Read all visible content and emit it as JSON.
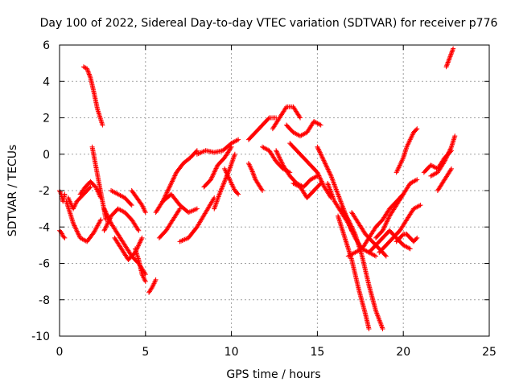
{
  "chart_data": {
    "type": "scatter",
    "title": "Day 100 of 2022, Sidereal Day-to-day VTEC variation (SDTVAR) for receiver p776",
    "xlabel": "GPS time / hours",
    "ylabel": "SDTVAR / TECUs",
    "xlim": [
      0,
      25
    ],
    "ylim": [
      -10,
      6
    ],
    "xticks": [
      0,
      5,
      10,
      15,
      20,
      25
    ],
    "xtick_labels": [
      "0",
      "5",
      "10",
      "15",
      "20",
      "25"
    ],
    "yticks": [
      -10,
      -8,
      -6,
      -4,
      -2,
      0,
      2,
      4,
      6
    ],
    "ytick_labels": [
      "-10",
      "-8",
      "-6",
      "-4",
      "-2",
      "0",
      "2",
      "4",
      "6"
    ],
    "grid": true,
    "legend": "none",
    "marker": "+",
    "colors": {
      "series": "#ff0000",
      "grid": "#a0a0a0",
      "axis": "#000000"
    },
    "series": [
      {
        "x": [
          0.0,
          0.1,
          0.2,
          0.3
        ],
        "y": [
          -2.0,
          -2.2,
          -2.6,
          -2.2
        ]
      },
      {
        "x": [
          0.0,
          0.1,
          0.2,
          0.3
        ],
        "y": [
          -4.2,
          -4.3,
          -4.5,
          -4.6
        ]
      },
      {
        "x": [
          0.5,
          0.8,
          1.0,
          1.4,
          1.8
        ],
        "y": [
          -2.4,
          -3.0,
          -2.6,
          -2.2,
          -1.8
        ]
      },
      {
        "x": [
          0.4,
          0.8,
          1.2,
          1.6,
          2.0,
          2.4
        ],
        "y": [
          -2.6,
          -3.8,
          -4.6,
          -4.8,
          -4.3,
          -3.6
        ]
      },
      {
        "x": [
          1.2,
          1.5,
          1.8,
          2.1,
          2.4
        ],
        "y": [
          -2.2,
          -1.8,
          -1.5,
          -1.8,
          -2.4
        ]
      },
      {
        "x": [
          1.4,
          1.6,
          1.8,
          2.0,
          2.2,
          2.5
        ],
        "y": [
          4.8,
          4.7,
          4.2,
          3.4,
          2.5,
          1.6
        ]
      },
      {
        "x": [
          1.9,
          2.1,
          2.3,
          2.5,
          2.7
        ],
        "y": [
          0.4,
          -0.6,
          -1.6,
          -2.6,
          -3.6
        ]
      },
      {
        "x": [
          2.6,
          3.0,
          3.4,
          3.8,
          4.2,
          4.6
        ],
        "y": [
          -4.2,
          -3.4,
          -3.0,
          -3.2,
          -3.6,
          -4.2
        ]
      },
      {
        "x": [
          2.6,
          3.0,
          3.4,
          3.8,
          4.2,
          4.6,
          5.0
        ],
        "y": [
          -3.0,
          -3.8,
          -4.4,
          -5.0,
          -5.6,
          -6.0,
          -6.6
        ]
      },
      {
        "x": [
          3.2,
          3.6,
          4.0,
          4.4,
          4.8
        ],
        "y": [
          -4.6,
          -5.2,
          -5.8,
          -5.4,
          -4.6
        ]
      },
      {
        "x": [
          3.0,
          3.4,
          3.8,
          4.2
        ],
        "y": [
          -2.0,
          -2.2,
          -2.4,
          -2.8
        ]
      },
      {
        "x": [
          4.2,
          4.5,
          4.8,
          5.0
        ],
        "y": [
          -2.0,
          -2.4,
          -2.8,
          -3.2
        ]
      },
      {
        "x": [
          4.4,
          4.6,
          4.8,
          5.0
        ],
        "y": [
          -5.2,
          -5.8,
          -6.6,
          -7.0
        ]
      },
      {
        "x": [
          5.2,
          5.4,
          5.6
        ],
        "y": [
          -7.6,
          -7.3,
          -6.9
        ]
      },
      {
        "x": [
          5.8,
          6.2,
          6.6,
          7.0
        ],
        "y": [
          -4.6,
          -4.2,
          -3.6,
          -3.0
        ]
      },
      {
        "x": [
          5.6,
          6.0,
          6.4,
          6.8,
          7.2,
          7.6,
          8.0
        ],
        "y": [
          -3.2,
          -2.6,
          -1.8,
          -1.0,
          -0.5,
          -0.2,
          0.2
        ]
      },
      {
        "x": [
          6.0,
          6.5,
          7.0,
          7.5,
          8.0
        ],
        "y": [
          -2.6,
          -2.2,
          -2.8,
          -3.2,
          -3.0
        ]
      },
      {
        "x": [
          7.0,
          7.5,
          8.0,
          8.5,
          9.0
        ],
        "y": [
          -4.8,
          -4.6,
          -4.0,
          -3.2,
          -2.4
        ]
      },
      {
        "x": [
          8.0,
          8.5,
          9.0,
          9.5,
          10.0,
          10.4
        ],
        "y": [
          0.0,
          0.2,
          0.1,
          0.2,
          0.6,
          0.8
        ]
      },
      {
        "x": [
          8.4,
          8.8,
          9.2,
          9.6,
          10.0
        ],
        "y": [
          -1.8,
          -1.4,
          -0.6,
          -0.2,
          0.4
        ]
      },
      {
        "x": [
          9.0,
          9.3,
          9.6,
          9.9,
          10.2
        ],
        "y": [
          -3.0,
          -2.2,
          -1.5,
          -0.8,
          0.0
        ]
      },
      {
        "x": [
          9.6,
          9.8,
          10.0,
          10.2,
          10.4
        ],
        "y": [
          -0.8,
          -1.2,
          -1.6,
          -2.0,
          -2.2
        ]
      },
      {
        "x": [
          11.0,
          11.4,
          11.8,
          12.2,
          12.6
        ],
        "y": [
          0.8,
          1.2,
          1.6,
          2.0,
          2.0
        ]
      },
      {
        "x": [
          11.0,
          11.2,
          11.4,
          11.6,
          11.8
        ],
        "y": [
          -0.5,
          -0.9,
          -1.4,
          -1.7,
          -2.0
        ]
      },
      {
        "x": [
          11.8,
          12.2,
          12.6,
          13.0,
          13.4
        ],
        "y": [
          0.4,
          0.2,
          -0.4,
          -0.8,
          -1.0
        ]
      },
      {
        "x": [
          12.4,
          12.8,
          13.2,
          13.6,
          14.0
        ],
        "y": [
          1.4,
          2.0,
          2.6,
          2.6,
          2.0
        ]
      },
      {
        "x": [
          12.6,
          13.0,
          13.4,
          13.8,
          14.2,
          14.6,
          15.0
        ],
        "y": [
          0.2,
          -0.6,
          -1.2,
          -1.6,
          -1.8,
          -1.4,
          -1.2
        ]
      },
      {
        "x": [
          13.2,
          13.6,
          14.0,
          14.4,
          14.8,
          15.2
        ],
        "y": [
          1.6,
          1.2,
          1.0,
          1.2,
          1.8,
          1.6
        ]
      },
      {
        "x": [
          13.4,
          13.8,
          14.2,
          14.6,
          15.0,
          15.4,
          15.8
        ],
        "y": [
          0.6,
          0.2,
          -0.2,
          -0.6,
          -1.0,
          -1.8,
          -2.4
        ]
      },
      {
        "x": [
          13.6,
          14.0,
          14.4,
          14.8,
          15.2
        ],
        "y": [
          -1.6,
          -1.8,
          -2.4,
          -2.0,
          -1.6
        ]
      },
      {
        "x": [
          15.0,
          15.4,
          15.8,
          16.2,
          16.6,
          17.0
        ],
        "y": [
          0.4,
          -0.4,
          -1.2,
          -2.2,
          -3.2,
          -4.2
        ]
      },
      {
        "x": [
          15.6,
          16.0,
          16.4,
          16.8,
          17.2,
          17.6
        ],
        "y": [
          -1.6,
          -2.6,
          -3.2,
          -3.8,
          -4.6,
          -5.2
        ]
      },
      {
        "x": [
          16.2,
          16.6,
          17.0,
          17.4,
          17.8,
          18.0
        ],
        "y": [
          -3.4,
          -4.6,
          -5.8,
          -7.4,
          -8.8,
          -9.6
        ]
      },
      {
        "x": [
          16.4,
          16.8,
          17.2,
          17.6,
          18.0,
          18.4,
          18.8
        ],
        "y": [
          -3.0,
          -3.6,
          -4.4,
          -5.6,
          -7.2,
          -8.6,
          -9.6
        ]
      },
      {
        "x": [
          16.8,
          17.2,
          17.6,
          18.0,
          18.4
        ],
        "y": [
          -5.6,
          -5.4,
          -5.2,
          -5.4,
          -5.6
        ]
      },
      {
        "x": [
          17.0,
          17.4,
          17.8,
          18.2,
          18.6,
          19.0
        ],
        "y": [
          -3.2,
          -3.8,
          -4.4,
          -4.8,
          -5.2,
          -5.6
        ]
      },
      {
        "x": [
          17.6,
          18.0,
          18.4,
          18.8,
          19.2,
          19.6,
          20.0
        ],
        "y": [
          -5.2,
          -4.6,
          -4.0,
          -3.6,
          -3.0,
          -2.6,
          -2.2
        ]
      },
      {
        "x": [
          18.0,
          18.4,
          18.8,
          19.2,
          19.6,
          20.0,
          20.4
        ],
        "y": [
          -5.4,
          -5.0,
          -4.6,
          -4.2,
          -4.6,
          -5.0,
          -5.2
        ]
      },
      {
        "x": [
          18.4,
          18.8,
          19.2,
          19.6,
          20.0,
          20.4,
          20.8
        ],
        "y": [
          -4.6,
          -4.2,
          -3.4,
          -2.8,
          -2.2,
          -1.6,
          -1.4
        ]
      },
      {
        "x": [
          18.6,
          19.0,
          19.4,
          19.8,
          20.2,
          20.6,
          21.0
        ],
        "y": [
          -5.4,
          -5.0,
          -4.6,
          -4.2,
          -3.6,
          -3.0,
          -2.8
        ]
      },
      {
        "x": [
          19.6,
          19.8,
          20.0,
          20.2
        ],
        "y": [
          -4.8,
          -4.6,
          -4.4,
          -4.4
        ]
      },
      {
        "x": [
          20.2,
          20.4,
          20.6,
          20.8
        ],
        "y": [
          -4.4,
          -4.6,
          -4.8,
          -4.6
        ]
      },
      {
        "x": [
          19.6,
          19.8,
          20.0,
          20.2,
          20.4,
          20.6,
          20.8
        ],
        "y": [
          -1.0,
          -0.6,
          -0.2,
          0.4,
          0.8,
          1.2,
          1.4
        ]
      },
      {
        "x": [
          21.2,
          21.6,
          22.0,
          22.4,
          22.8
        ],
        "y": [
          -1.0,
          -0.6,
          -0.8,
          -0.2,
          0.2
        ]
      },
      {
        "x": [
          21.6,
          22.0,
          22.4,
          22.8,
          23.0
        ],
        "y": [
          -1.2,
          -1.0,
          -0.4,
          0.4,
          1.0
        ]
      },
      {
        "x": [
          22.0,
          22.4,
          22.8
        ],
        "y": [
          -2.0,
          -1.4,
          -0.8
        ]
      },
      {
        "x": [
          22.5,
          22.7,
          22.9
        ],
        "y": [
          4.8,
          5.3,
          5.8
        ]
      }
    ]
  }
}
